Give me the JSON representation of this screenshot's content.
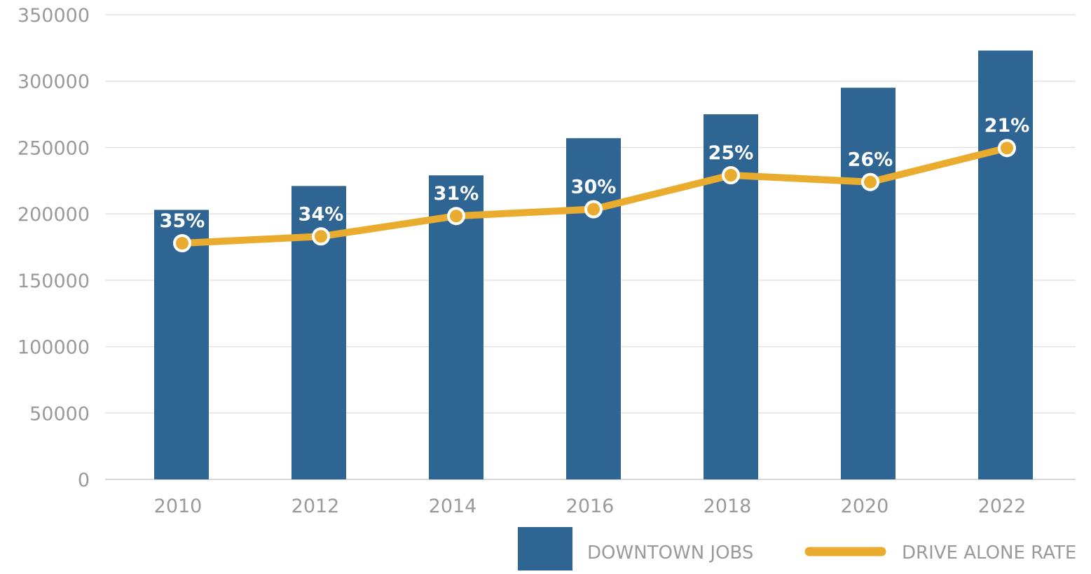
{
  "chart_data": {
    "type": "bar",
    "categories": [
      "2010",
      "2012",
      "2014",
      "2016",
      "2018",
      "2020",
      "2022"
    ],
    "ylim": [
      0,
      350000
    ],
    "y_ticks": [
      "0",
      "50000",
      "100000",
      "150000",
      "200000",
      "250000",
      "300000",
      "350000"
    ],
    "grid": true,
    "legend_position": "bottom-right",
    "series": [
      {
        "name": "DOWNTOWN JOBS",
        "type": "bar",
        "color": "#2e6593",
        "values": [
          203000,
          221000,
          229000,
          257000,
          275000,
          295000,
          323000
        ]
      },
      {
        "name": "DRIVE ALONE RATE",
        "type": "line",
        "color": "#e9ac2f",
        "values": [
          35,
          34,
          31,
          30,
          25,
          26,
          21
        ],
        "unit": "%",
        "data_labels": [
          "35%",
          "34%",
          "31%",
          "30%",
          "25%",
          "26%",
          "21%"
        ]
      }
    ]
  }
}
